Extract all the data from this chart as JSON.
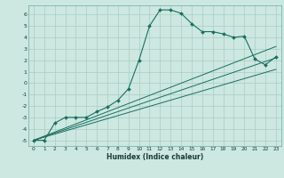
{
  "xlabel": "Humidex (Indice chaleur)",
  "bg_color": "#cce8e0",
  "grid_color": "#aaccc4",
  "line_color": "#1a6e62",
  "xlim": [
    -0.5,
    23.5
  ],
  "ylim": [
    -5.5,
    6.8
  ],
  "xticks": [
    0,
    1,
    2,
    3,
    4,
    5,
    6,
    7,
    8,
    9,
    10,
    11,
    12,
    13,
    14,
    15,
    16,
    17,
    18,
    19,
    20,
    21,
    22,
    23
  ],
  "yticks": [
    -5,
    -4,
    -3,
    -2,
    -1,
    0,
    1,
    2,
    3,
    4,
    5,
    6
  ],
  "main_x": [
    0,
    1,
    2,
    3,
    4,
    5,
    6,
    7,
    8,
    9,
    10,
    11,
    12,
    13,
    14,
    15,
    16,
    17,
    18,
    19,
    20,
    21,
    22,
    23
  ],
  "main_y": [
    -5.0,
    -5.0,
    -3.5,
    -3.0,
    -3.0,
    -3.0,
    -2.5,
    -2.1,
    -1.5,
    -0.5,
    2.0,
    5.0,
    6.4,
    6.4,
    6.1,
    5.2,
    4.5,
    4.5,
    4.3,
    4.0,
    4.1,
    2.1,
    1.6,
    2.3
  ],
  "line1_x": [
    0,
    23
  ],
  "line1_y": [
    -5.0,
    3.2
  ],
  "line2_x": [
    0,
    23
  ],
  "line2_y": [
    -5.0,
    2.2
  ],
  "line3_x": [
    0,
    23
  ],
  "line3_y": [
    -5.0,
    1.2
  ]
}
